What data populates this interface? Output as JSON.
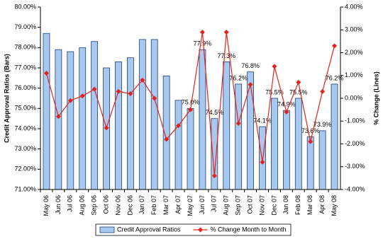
{
  "chart_data": {
    "type": "bar",
    "categories": [
      "May 06",
      "Jun 06",
      "Jul 06",
      "Aug 06",
      "Sep 06",
      "Oct 06",
      "Nov 06",
      "Dec 06",
      "Jan 07",
      "Feb 07",
      "Mar 07",
      "Apr 07",
      "May 07",
      "Jun 07",
      "Jul 07",
      "Aug 07",
      "Sep 07",
      "Oct 07",
      "Nov 07",
      "Dec 07",
      "Jan 08",
      "Feb 08",
      "Mar 08",
      "Apr 08",
      "May 08"
    ],
    "series": [
      {
        "name": "Credit Approval Ratios",
        "type": "bar",
        "color": "#a9c8f0",
        "values": [
          78.7,
          77.9,
          77.8,
          78.0,
          78.3,
          77.0,
          77.3,
          77.5,
          78.4,
          78.4,
          76.6,
          75.4,
          75.0,
          77.9,
          74.5,
          77.3,
          76.2,
          76.8,
          74.1,
          75.5,
          74.9,
          75.5,
          73.6,
          73.9,
          76.2
        ],
        "value_labels": [
          null,
          null,
          null,
          null,
          null,
          null,
          null,
          null,
          null,
          null,
          null,
          null,
          "75.0%",
          "77.9%",
          "74.5%",
          "77.3%",
          "76.2%",
          "76.8%",
          "74.1%",
          "75.5%",
          "74.9%",
          "75.5%",
          "73.6%",
          "73.9%",
          "76.2%"
        ]
      },
      {
        "name": "% Change Month to Month",
        "type": "line",
        "axis": "y2",
        "color": "#e3231b",
        "values": [
          1.1,
          -0.8,
          -0.1,
          0.1,
          0.4,
          -1.3,
          0.3,
          0.2,
          0.8,
          0.0,
          -1.8,
          -1.2,
          -0.5,
          2.9,
          -3.4,
          2.9,
          -1.1,
          0.6,
          -2.8,
          1.4,
          -0.6,
          0.7,
          -1.9,
          0.3,
          2.3
        ]
      }
    ],
    "y_label": "Credit Approval Ratios (Bars)",
    "y2_label": "% Change (Lines)",
    "ylim": [
      71,
      80
    ],
    "yticks": [
      {
        "value": 71,
        "label": "71.00%"
      },
      {
        "value": 72,
        "label": "72.00%"
      },
      {
        "value": 73,
        "label": "73.00%"
      },
      {
        "value": 74,
        "label": "74.00%"
      },
      {
        "value": 75,
        "label": "75.00%"
      },
      {
        "value": 76,
        "label": "76.00%"
      },
      {
        "value": 77,
        "label": "77.00%"
      },
      {
        "value": 78,
        "label": "78.00%"
      },
      {
        "value": 79,
        "label": "79.00%"
      },
      {
        "value": 80,
        "label": "80.00%"
      }
    ],
    "y2lim": [
      -4,
      4
    ],
    "y2ticks": [
      {
        "value": -4,
        "label": "-4.00%"
      },
      {
        "value": -3,
        "label": "-3.00%"
      },
      {
        "value": -2,
        "label": "-2.00%"
      },
      {
        "value": -1,
        "label": "-1.00%"
      },
      {
        "value": 0,
        "label": "0.00%"
      },
      {
        "value": 1,
        "label": "1.00%"
      },
      {
        "value": 2,
        "label": "2.00%"
      },
      {
        "value": 3,
        "label": "3.00%"
      },
      {
        "value": 4,
        "label": "4.00%"
      }
    ],
    "legend": "bottom"
  }
}
